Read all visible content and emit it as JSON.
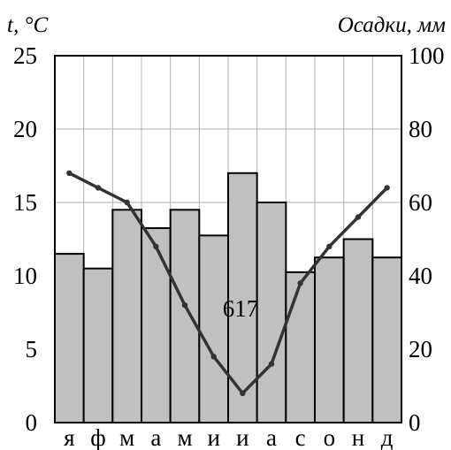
{
  "chart_data": {
    "type": "bar+line",
    "left_axis_title": "t, °C",
    "right_axis_title": "Осадки, мм",
    "categories": [
      "я",
      "ф",
      "м",
      "а",
      "м",
      "и",
      "и",
      "а",
      "с",
      "о",
      "н",
      "д"
    ],
    "temperature": {
      "unit": "°C",
      "axis": "left",
      "ylim": [
        0,
        25
      ],
      "ticks": [
        "0",
        "5",
        "10",
        "15",
        "20",
        "25"
      ],
      "values": [
        17,
        16,
        15,
        12,
        8,
        4.5,
        2,
        4,
        9.5,
        12,
        14,
        16
      ],
      "color": "#333333"
    },
    "precipitation": {
      "unit": "мм",
      "axis": "right",
      "ylim": [
        0,
        100
      ],
      "ticks": [
        "0",
        "20",
        "40",
        "60",
        "80",
        "100"
      ],
      "values": [
        46,
        42,
        58,
        53,
        58,
        51,
        68,
        60,
        41,
        45,
        50,
        45
      ],
      "bar_color": "#c0c0c0"
    },
    "annotation": "617",
    "grid": true
  }
}
